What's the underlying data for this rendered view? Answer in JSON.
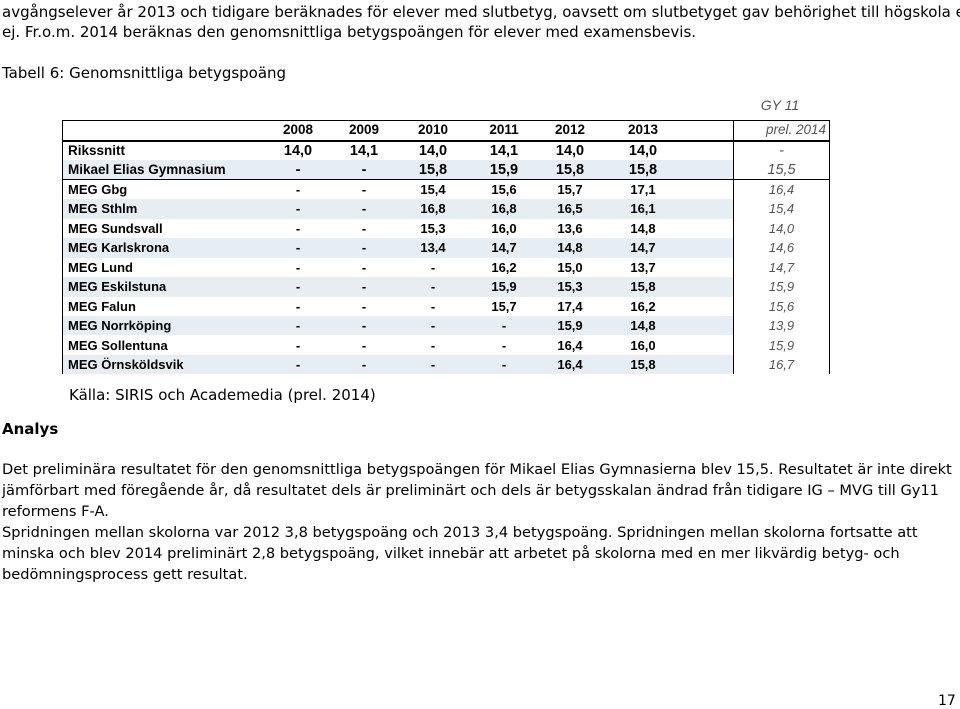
{
  "intro": {
    "line1": "avgångselever år 2013 och tidigare beräknades för elever med slutbetyg, oavsett om slutbetyget gav behörighet till högskola eller",
    "line2": "ej. Fr.o.m. 2014 beräknas den genomsnittliga betygspoängen för elever med examensbevis."
  },
  "caption": "Tabell 6: Genomsnittliga betygspoäng",
  "table": {
    "gy_header": "GY 11",
    "years": [
      "2008",
      "2009",
      "2010",
      "2011",
      "2012",
      "2013"
    ],
    "gy_sub": "prel. 2014",
    "rows": [
      {
        "name": "Rikssnitt",
        "values": [
          "14,0",
          "14,1",
          "14,0",
          "14,1",
          "14,0",
          "14,0"
        ],
        "gy": "-"
      },
      {
        "name": "Mikael Elias Gymnasium",
        "values": [
          "-",
          "-",
          "15,8",
          "15,9",
          "15,8",
          "15,8"
        ],
        "gy": "15,5"
      },
      {
        "name": "MEG Gbg",
        "values": [
          "-",
          "-",
          "15,4",
          "15,6",
          "15,7",
          "17,1"
        ],
        "gy": "16,4"
      },
      {
        "name": "MEG Sthlm",
        "values": [
          "-",
          "-",
          "16,8",
          "16,8",
          "16,5",
          "16,1"
        ],
        "gy": "15,4"
      },
      {
        "name": "MEG Sundsvall",
        "values": [
          "-",
          "-",
          "15,3",
          "16,0",
          "13,6",
          "14,8"
        ],
        "gy": "14,0"
      },
      {
        "name": "MEG Karlskrona",
        "values": [
          "-",
          "-",
          "13,4",
          "14,7",
          "14,8",
          "14,7"
        ],
        "gy": "14,6"
      },
      {
        "name": "MEG Lund",
        "values": [
          "-",
          "-",
          "-",
          "16,2",
          "15,0",
          "13,7"
        ],
        "gy": "14,7"
      },
      {
        "name": "MEG Eskilstuna",
        "values": [
          "-",
          "-",
          "-",
          "15,9",
          "15,3",
          "15,8"
        ],
        "gy": "15,9"
      },
      {
        "name": "MEG Falun",
        "values": [
          "-",
          "-",
          "-",
          "15,7",
          "17,4",
          "16,2"
        ],
        "gy": "15,6"
      },
      {
        "name": "MEG Norrköping",
        "values": [
          "-",
          "-",
          "-",
          "-",
          "15,9",
          "14,8"
        ],
        "gy": "13,9"
      },
      {
        "name": "MEG Sollentuna",
        "values": [
          "-",
          "-",
          "-",
          "-",
          "16,4",
          "16,0"
        ],
        "gy": "15,9"
      },
      {
        "name": "MEG Örnsköldsvik",
        "values": [
          "-",
          "-",
          "-",
          "-",
          "16,4",
          "15,8"
        ],
        "gy": "16,7"
      }
    ]
  },
  "source": "Källa: SIRIS och Academedia (prel. 2014)",
  "analys_heading": "Analys",
  "paragraph1": "Det preliminära resultatet för den genomsnittliga betygspoängen för Mikael Elias Gymnasierna blev 15,5. Resultatet är inte direkt jämförbart med föregående år, då resultatet dels är preliminärt och dels är betygsskalan ändrad från tidigare IG – MVG till Gy11 reformens F-A.",
  "paragraph2": "Spridningen mellan skolorna var 2012 3,8 betygspoäng och 2013 3,4 betygspoäng. Spridningen mellan skolorna fortsatte att minska och blev 2014 preliminärt 2,8 betygspoäng, vilket innebär att arbetet på skolorna med en mer likvärdig betyg- och bedömningsprocess gett resultat.",
  "page_number": "17"
}
